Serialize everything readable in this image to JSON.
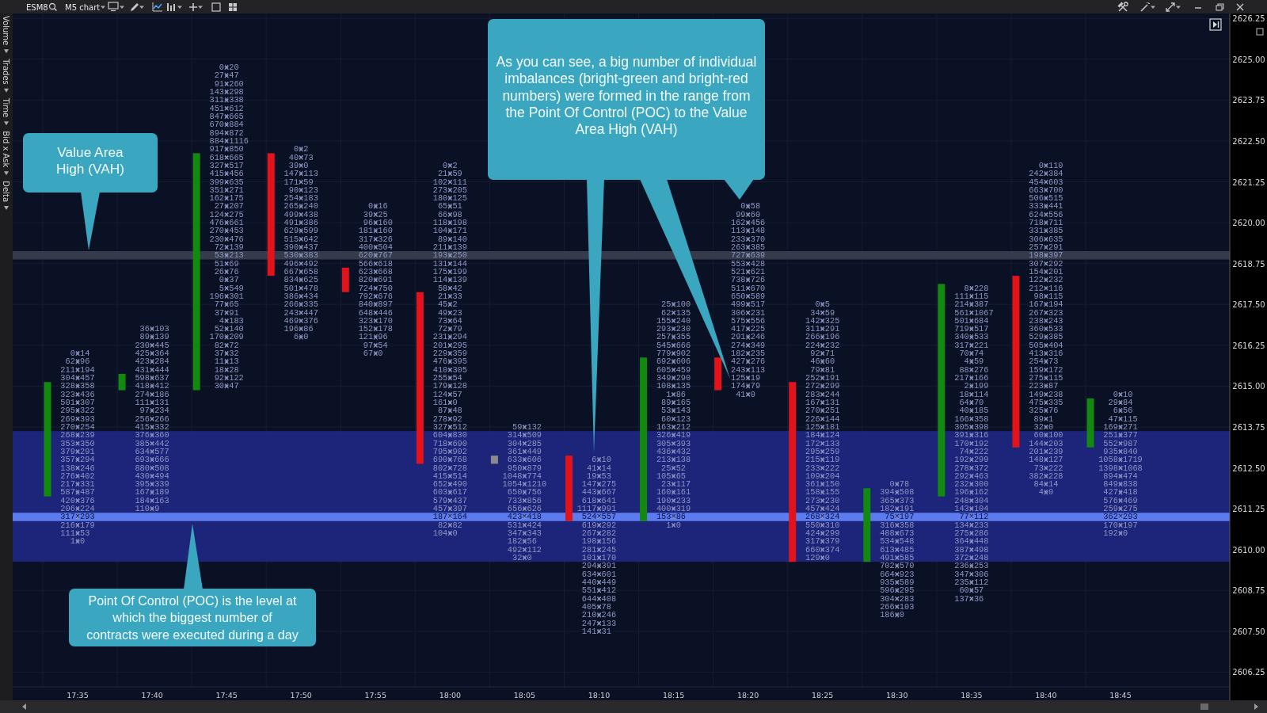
{
  "chart_data": {
    "type": "bar",
    "title": "ESM8",
    "subtitle": "M5 chart",
    "categories": [
      "17:35",
      "17:40",
      "17:45",
      "17:50",
      "17:55",
      "18:00",
      "18:05",
      "18:10",
      "18:15",
      "18:20",
      "18:25",
      "18:30",
      "18:35",
      "18:40",
      "18:45"
    ],
    "ylim": [
      2605.8,
      2626.4
    ],
    "yticks": [
      2606.25,
      {
        "value": 2607.5,
        "label": "2607.50"
      },
      2608.75,
      {
        "value": 2610,
        "label": "2610.00"
      },
      2611.25,
      {
        "value": 2612.5,
        "label": "2612.50"
      },
      2613.75,
      {
        "value": 2615,
        "label": "2615.00"
      },
      2616.25,
      {
        "value": 2617.5,
        "label": "2617.50"
      },
      2618.75,
      {
        "value": 2620,
        "label": "2620.00"
      },
      2621.25,
      {
        "value": 2622.5,
        "label": "2622.50"
      },
      2623.75,
      {
        "value": 2625,
        "label": "2625.00"
      },
      2626.25
    ],
    "grid": true,
    "bands": [
      {
        "axis": "y",
        "from": 2609.625,
        "to": 2613.625,
        "color": "#1c257a"
      }
    ],
    "ref_lines": [
      {
        "axis": "y",
        "value": 2619,
        "color": "#363b4b"
      },
      {
        "axis": "y",
        "value": 2611,
        "color": "#5b7bef"
      }
    ],
    "annotations": [
      "Volume",
      "Trades",
      "Time",
      "Bid x Ask",
      "Delta",
      "Value Area High (VAH)",
      "As you can see, a big number of individual imbalances (bright-green and bright-red numbers) were formed in the range from the Point Of Control (POC) to the Value Area High (VAH)",
      "Point Of Control (POC) is the level at which the biggest number of contracts were executed during a day"
    ],
    "series": [
      {
        "base": [
          2611.625,
          2614.875,
          2614.875,
          2622.125,
          2618.625,
          2617.875,
          2612.625,
          2612.875,
          2610.875,
          2615.875,
          2615.125,
          2609.625,
          2611.625,
          2618.375,
          2613.125
        ],
        "values": [
          3.5,
          0.5,
          7.25,
          -3.75,
          -0.75,
          -5.25,
          0.25,
          -2,
          5,
          -1,
          -5.5,
          2.25,
          6.5,
          -5.25,
          1.5
        ],
        "colors": [
          "#13890f",
          "#13890f",
          "#13890f",
          "#e3131b",
          "#e3131b",
          "#e3131b",
          "#8a8a8a",
          "#e3131b",
          "#13890f",
          "#e3131b",
          "#e3131b",
          "#13890f",
          "#13890f",
          "#e3131b",
          "#13890f"
        ]
      },
      {
        "type": "scatter",
        "marker": "cross",
        "color": "#8e95c2",
        "x": [
          "17:35",
          "17:35",
          "17:35",
          "17:35",
          "17:35",
          "17:35",
          "17:35",
          "17:35",
          "17:35",
          "17:35",
          "17:35",
          "17:35",
          "17:35",
          "17:35",
          "17:35",
          "17:35",
          "17:35",
          "17:35",
          "17:35",
          "17:35",
          "17:35",
          "17:35",
          "17:35",
          "17:35"
        ],
        "values": [
          2616,
          2615.75,
          2615.5,
          2615.25,
          2615,
          2614.75,
          2614.5,
          2614.25,
          2614,
          2613.75,
          2613.5,
          2613.25,
          2613,
          2612.75,
          2612.5,
          2612.25,
          2612,
          2611.75,
          2611.5,
          2611.25,
          2611,
          2610.75,
          2610.5,
          2610.25
        ],
        "value_labels": [
          "0×14",
          "62×96",
          "211×194",
          "304×457",
          "328×358",
          "323×436",
          "501×307",
          "295×322",
          "269×393",
          "270×254",
          "268×239",
          "353×350",
          "379×291",
          "357×294",
          "138×246",
          "276×402",
          "217×331",
          "587×487",
          "420×376",
          "206×224",
          "317×293",
          "216×179",
          "111×53",
          "1×0"
        ]
      },
      {
        "type": "scatter",
        "marker": "cross",
        "color": "#8e95c2",
        "x": [
          "17:40",
          "17:40",
          "17:40",
          "17:40",
          "17:40",
          "17:40",
          "17:40",
          "17:40",
          "17:40",
          "17:40",
          "17:40",
          "17:40",
          "17:40",
          "17:40",
          "17:40",
          "17:40",
          "17:40",
          "17:40",
          "17:40",
          "17:40",
          "17:40",
          "17:40",
          "17:40"
        ],
        "values": [
          2616.75,
          2616.5,
          2616.25,
          2616,
          2615.75,
          2615.5,
          2615.25,
          2615,
          2614.75,
          2614.5,
          2614.25,
          2614,
          2613.75,
          2613.5,
          2613.25,
          2613,
          2612.75,
          2612.5,
          2612.25,
          2612,
          2611.75,
          2611.5,
          2611.25
        ],
        "value_labels": [
          "36×103",
          "89×139",
          "230×445",
          "425×364",
          "423×284",
          "431×444",
          "598×637",
          "418×412",
          "274×186",
          "111×131",
          "97×234",
          "256×266",
          "415×332",
          "376×360",
          "385×442",
          "634×577",
          "693×666",
          "880×508",
          "430×494",
          "395×339",
          "167×189",
          "184×163",
          "110×9"
        ]
      },
      {
        "type": "scatter",
        "marker": "cross",
        "color": "#8e95c2",
        "x": [
          "17:45",
          "17:45",
          "17:45",
          "17:45",
          "17:45",
          "17:45",
          "17:45",
          "17:45",
          "17:45",
          "17:45",
          "17:45",
          "17:45",
          "17:45",
          "17:45",
          "17:45",
          "17:45",
          "17:45",
          "17:45",
          "17:45",
          "17:45",
          "17:45",
          "17:45",
          "17:45",
          "17:45",
          "17:45",
          "17:45",
          "17:45",
          "17:45",
          "17:45",
          "17:45",
          "17:45",
          "17:45",
          "17:45",
          "17:45",
          "17:45",
          "17:45",
          "17:45",
          "17:45",
          "17:45",
          "17:45"
        ],
        "values": [
          2624.75,
          2624.5,
          2624.25,
          2624,
          2623.75,
          2623.5,
          2623.25,
          2623,
          2622.75,
          2622.5,
          2622.25,
          2622,
          2621.75,
          2621.5,
          2621.25,
          2621,
          2620.75,
          2620.5,
          2620.25,
          2620,
          2619.75,
          2619.5,
          2619.25,
          2619,
          2618.75,
          2618.5,
          2618.25,
          2618,
          2617.75,
          2617.5,
          2617.25,
          2617,
          2616.75,
          2616.5,
          2616.25,
          2616,
          2615.75,
          2615.5,
          2615.25,
          2615
        ],
        "value_labels": [
          "0×20",
          "27×47",
          "91×260",
          "143×298",
          "311×338",
          "451×612",
          "847×665",
          "670×884",
          "894×872",
          "884×1116",
          "917×850",
          "618×665",
          "327×517",
          "415×456",
          "399×635",
          "351×271",
          "162×175",
          "27×207",
          "124×275",
          "476×661",
          "270×453",
          "230×476",
          "72×139",
          "53×213",
          "51×69",
          "26×76",
          "0×37",
          "5×549",
          "196×301",
          "77×65",
          "37×91",
          "4×183",
          "52×140",
          "170×209",
          "82×72",
          "37×32",
          "11×13",
          "18×28",
          "92×122",
          "30×47"
        ]
      },
      {
        "type": "scatter",
        "marker": "cross",
        "color": "#8e95c2",
        "x": [
          "17:50",
          "17:50",
          "17:50",
          "17:50",
          "17:50",
          "17:50",
          "17:50",
          "17:50",
          "17:50",
          "17:50",
          "17:50",
          "17:50",
          "17:50",
          "17:50",
          "17:50",
          "17:50",
          "17:50",
          "17:50",
          "17:50",
          "17:50",
          "17:50",
          "17:50",
          "17:50",
          "17:50"
        ],
        "values": [
          2622.25,
          2622,
          2621.75,
          2621.5,
          2621.25,
          2621,
          2620.75,
          2620.5,
          2620.25,
          2620,
          2619.75,
          2619.5,
          2619.25,
          2619,
          2618.75,
          2618.5,
          2618.25,
          2618,
          2617.75,
          2617.5,
          2617.25,
          2617,
          2616.75,
          2616.5
        ],
        "value_labels": [
          "0×2",
          "40×73",
          "39×0",
          "147×113",
          "171×59",
          "90×123",
          "254×183",
          "265×240",
          "499×438",
          "491×386",
          "629×599",
          "515×642",
          "390×437",
          "530×383",
          "496×492",
          "667×658",
          "834×625",
          "501×478",
          "386×434",
          "266×335",
          "243×447",
          "469×376",
          "196×86",
          "6×0"
        ]
      },
      {
        "type": "scatter",
        "marker": "cross",
        "color": "#8e95c2",
        "x": [
          "17:55",
          "17:55",
          "17:55",
          "17:55",
          "17:55",
          "17:55",
          "17:55",
          "17:55",
          "17:55",
          "17:55",
          "17:55",
          "17:55",
          "17:55",
          "17:55",
          "17:55",
          "17:55",
          "17:55",
          "17:55",
          "17:55"
        ],
        "values": [
          2620.5,
          2620.25,
          2620,
          2619.75,
          2619.5,
          2619.25,
          2619,
          2618.75,
          2618.5,
          2618.25,
          2618,
          2617.75,
          2617.5,
          2617.25,
          2617,
          2616.75,
          2616.5,
          2616.25,
          2616
        ],
        "value_labels": [
          "0×16",
          "39×25",
          "96×160",
          "181×160",
          "317×326",
          "400×504",
          "620×767",
          "566×618",
          "623×668",
          "820×691",
          "724×750",
          "792×676",
          "840×897",
          "648×446",
          "323×170",
          "152×178",
          "121×96",
          "97×54",
          "67×0"
        ]
      },
      {
        "type": "scatter",
        "marker": "cross",
        "color": "#8e95c2",
        "x": [
          "18:00",
          "18:00",
          "18:00",
          "18:00",
          "18:00",
          "18:00",
          "18:00",
          "18:00",
          "18:00",
          "18:00",
          "18:00",
          "18:00",
          "18:00",
          "18:00",
          "18:00",
          "18:00",
          "18:00",
          "18:00",
          "18:00",
          "18:00",
          "18:00",
          "18:00",
          "18:00",
          "18:00",
          "18:00",
          "18:00",
          "18:00",
          "18:00",
          "18:00",
          "18:00",
          "18:00",
          "18:00",
          "18:00",
          "18:00",
          "18:00",
          "18:00",
          "18:00",
          "18:00",
          "18:00",
          "18:00",
          "18:00",
          "18:00",
          "18:00",
          "18:00",
          "18:00",
          "18:00"
        ],
        "values": [
          2621.75,
          2621.5,
          2621.25,
          2621,
          2620.75,
          2620.5,
          2620.25,
          2620,
          2619.75,
          2619.5,
          2619.25,
          2619,
          2618.75,
          2618.5,
          2618.25,
          2618,
          2617.75,
          2617.5,
          2617.25,
          2617,
          2616.75,
          2616.5,
          2616.25,
          2616,
          2615.75,
          2615.5,
          2615.25,
          2615,
          2614.75,
          2614.5,
          2614.25,
          2614,
          2613.75,
          2613.5,
          2613.25,
          2613,
          2612.75,
          2612.5,
          2612.25,
          2612,
          2611.75,
          2611.5,
          2611.25,
          2611,
          2610.75,
          2610.5
        ],
        "value_labels": [
          "0×2",
          "21×59",
          "102×111",
          "273×205",
          "180×125",
          "65×51",
          "66×98",
          "118×198",
          "104×171",
          "89×140",
          "211×139",
          "193×250",
          "131×144",
          "175×199",
          "114×139",
          "58×42",
          "21×33",
          "45×2",
          "49×23",
          "73×64",
          "72×79",
          "231×294",
          "201×295",
          "229×359",
          "476×395",
          "410×305",
          "255×54",
          "179×128",
          "124×57",
          "161×0",
          "87×48",
          "278×92",
          "327×512",
          "604×830",
          "718×690",
          "795×902",
          "690×768",
          "802×728",
          "415×514",
          "652×490",
          "603×617",
          "579×437",
          "457×397",
          "187×164",
          "82×82",
          "104×0"
        ]
      },
      {
        "type": "scatter",
        "marker": "cross",
        "color": "#8e95c2",
        "x": [
          "18:05",
          "18:05",
          "18:05",
          "18:05",
          "18:05",
          "18:05",
          "18:05",
          "18:05",
          "18:05",
          "18:05",
          "18:05",
          "18:05",
          "18:05",
          "18:05",
          "18:05",
          "18:05",
          "18:05"
        ],
        "values": [
          2613.75,
          2613.5,
          2613.25,
          2613,
          2612.75,
          2612.5,
          2612.25,
          2612,
          2611.75,
          2611.5,
          2611.25,
          2611,
          2610.75,
          2610.5,
          2610.25,
          2610,
          2609.75
        ],
        "value_labels": [
          "59×132",
          "314×509",
          "304×285",
          "361×449",
          "633×606",
          "950×879",
          "1048×774",
          "1054×1210",
          "650×756",
          "733×856",
          "656×626",
          "423×418",
          "531×424",
          "347×343",
          "182×56",
          "492×112",
          "32×0"
        ]
      },
      {
        "type": "scatter",
        "marker": "cross",
        "color": "#8e95c2",
        "x": [
          "18:10",
          "18:10",
          "18:10",
          "18:10",
          "18:10",
          "18:10",
          "18:10",
          "18:10",
          "18:10",
          "18:10",
          "18:10",
          "18:10",
          "18:10",
          "18:10",
          "18:10",
          "18:10",
          "18:10",
          "18:10",
          "18:10",
          "18:10",
          "18:10",
          "18:10"
        ],
        "values": [
          2612.75,
          2612.5,
          2612.25,
          2612,
          2611.75,
          2611.5,
          2611.25,
          2611,
          2610.75,
          2610.5,
          2610.25,
          2610,
          2609.75,
          2609.5,
          2609.25,
          2609,
          2608.75,
          2608.5,
          2608.25,
          2608,
          2607.75,
          2607.5
        ],
        "value_labels": [
          "6×10",
          "41×14",
          "19×53",
          "147×275",
          "443×667",
          "618×641",
          "1117×991",
          "524×557",
          "619×292",
          "267×282",
          "198×156",
          "281×245",
          "101×170",
          "294×391",
          "634×601",
          "440×449",
          "551×412",
          "644×408",
          "405×78",
          "210×246",
          "247×133",
          "141×31"
        ]
      },
      {
        "type": "scatter",
        "marker": "cross",
        "color": "#8e95c2",
        "x": [
          "18:15",
          "18:15",
          "18:15",
          "18:15",
          "18:15",
          "18:15",
          "18:15",
          "18:15",
          "18:15",
          "18:15",
          "18:15",
          "18:15",
          "18:15",
          "18:15",
          "18:15",
          "18:15",
          "18:15",
          "18:15",
          "18:15",
          "18:15",
          "18:15",
          "18:15",
          "18:15",
          "18:15",
          "18:15",
          "18:15",
          "18:15",
          "18:15"
        ],
        "values": [
          2617.5,
          2617.25,
          2617,
          2616.75,
          2616.5,
          2616.25,
          2616,
          2615.75,
          2615.5,
          2615.25,
          2615,
          2614.75,
          2614.5,
          2614.25,
          2614,
          2613.75,
          2613.5,
          2613.25,
          2613,
          2612.75,
          2612.5,
          2612.25,
          2612,
          2611.75,
          2611.5,
          2611.25,
          2611,
          2610.75
        ],
        "value_labels": [
          "25×100",
          "62×135",
          "155×240",
          "293×230",
          "257×355",
          "545×666",
          "779×902",
          "692×606",
          "605×459",
          "349×290",
          "108×135",
          "1×86",
          "89×165",
          "53×143",
          "60×123",
          "163×212",
          "326×419",
          "305×393",
          "436×432",
          "213×138",
          "25×52",
          "105×65",
          "23×117",
          "160×161",
          "190×233",
          "400×319",
          "153×86",
          "1×0"
        ]
      },
      {
        "type": "scatter",
        "marker": "cross",
        "color": "#8e95c2",
        "x": [
          "18:20",
          "18:20",
          "18:20",
          "18:20",
          "18:20",
          "18:20",
          "18:20",
          "18:20",
          "18:20",
          "18:20",
          "18:20",
          "18:20",
          "18:20",
          "18:20",
          "18:20",
          "18:20",
          "18:20",
          "18:20",
          "18:20",
          "18:20",
          "18:20",
          "18:20",
          "18:20",
          "18:20"
        ],
        "values": [
          2620.5,
          2620.25,
          2620,
          2619.75,
          2619.5,
          2619.25,
          2619,
          2618.75,
          2618.5,
          2618.25,
          2618,
          2617.75,
          2617.5,
          2617.25,
          2617,
          2616.75,
          2616.5,
          2616.25,
          2616,
          2615.75,
          2615.5,
          2615.25,
          2615,
          2614.75
        ],
        "value_labels": [
          "0×58",
          "99×60",
          "162×456",
          "113×148",
          "233×370",
          "263×385",
          "727×639",
          "553×428",
          "521×621",
          "738×726",
          "511×670",
          "650×589",
          "499×517",
          "306×231",
          "575×556",
          "417×225",
          "291×246",
          "274×349",
          "182×235",
          "427×276",
          "243×113",
          "125×19",
          "174×79",
          "41×0"
        ]
      },
      {
        "type": "scatter",
        "marker": "cross",
        "color": "#8e95c2",
        "x": [
          "18:25",
          "18:25",
          "18:25",
          "18:25",
          "18:25",
          "18:25",
          "18:25",
          "18:25",
          "18:25",
          "18:25",
          "18:25",
          "18:25",
          "18:25",
          "18:25",
          "18:25",
          "18:25",
          "18:25",
          "18:25",
          "18:25",
          "18:25",
          "18:25",
          "18:25",
          "18:25",
          "18:25",
          "18:25",
          "18:25",
          "18:25",
          "18:25",
          "18:25",
          "18:25",
          "18:25",
          "18:25"
        ],
        "values": [
          2617.5,
          2617.25,
          2617,
          2616.75,
          2616.5,
          2616.25,
          2616,
          2615.75,
          2615.5,
          2615.25,
          2615,
          2614.75,
          2614.5,
          2614.25,
          2614,
          2613.75,
          2613.5,
          2613.25,
          2613,
          2612.75,
          2612.5,
          2612.25,
          2612,
          2611.75,
          2611.5,
          2611.25,
          2611,
          2610.75,
          2610.5,
          2610.25,
          2610,
          2609.75
        ],
        "value_labels": [
          "0×5",
          "34×59",
          "142×325",
          "311×291",
          "266×196",
          "224×232",
          "92×71",
          "46×60",
          "79×81",
          "252×191",
          "272×299",
          "283×244",
          "167×131",
          "270×251",
          "226×144",
          "125×181",
          "184×124",
          "172×133",
          "295×259",
          "215×119",
          "233×222",
          "109×204",
          "361×150",
          "158×155",
          "273×230",
          "457×424",
          "268×324",
          "550×310",
          "424×299",
          "317×379",
          "660×374",
          "129×0"
        ]
      },
      {
        "type": "scatter",
        "marker": "cross",
        "color": "#8e95c2",
        "x": [
          "18:30",
          "18:30",
          "18:30",
          "18:30",
          "18:30",
          "18:30",
          "18:30",
          "18:30",
          "18:30",
          "18:30",
          "18:30",
          "18:30",
          "18:30",
          "18:30",
          "18:30",
          "18:30",
          "18:30"
        ],
        "values": [
          2612,
          2611.75,
          2611.5,
          2611.25,
          2611,
          2610.75,
          2610.5,
          2610.25,
          2610,
          2609.75,
          2609.5,
          2609.25,
          2609,
          2608.75,
          2608.5,
          2608.25,
          2608
        ],
        "value_labels": [
          "0×78",
          "394×508",
          "365×373",
          "182×191",
          "75×197",
          "316×358",
          "488×673",
          "534×548",
          "613×485",
          "491×585",
          "702×570",
          "664×923",
          "935×589",
          "596×295",
          "304×283",
          "266×103",
          "186×0"
        ]
      },
      {
        "type": "scatter",
        "marker": "cross",
        "color": "#8e95c2",
        "x": [
          "18:35",
          "18:35",
          "18:35",
          "18:35",
          "18:35",
          "18:35",
          "18:35",
          "18:35",
          "18:35",
          "18:35",
          "18:35",
          "18:35",
          "18:35",
          "18:35",
          "18:35",
          "18:35",
          "18:35",
          "18:35",
          "18:35",
          "18:35",
          "18:35",
          "18:35",
          "18:35",
          "18:35",
          "18:35",
          "18:35",
          "18:35",
          "18:35",
          "18:35",
          "18:35",
          "18:35",
          "18:35",
          "18:35",
          "18:35",
          "18:35",
          "18:35",
          "18:35",
          "18:35",
          "18:35"
        ],
        "values": [
          2618,
          2617.75,
          2617.5,
          2617.25,
          2617,
          2616.75,
          2616.5,
          2616.25,
          2616,
          2615.75,
          2615.5,
          2615.25,
          2615,
          2614.75,
          2614.5,
          2614.25,
          2614,
          2613.75,
          2613.5,
          2613.25,
          2613,
          2612.75,
          2612.5,
          2612.25,
          2612,
          2611.75,
          2611.5,
          2611.25,
          2611,
          2610.75,
          2610.5,
          2610.25,
          2610,
          2609.75,
          2609.5,
          2609.25,
          2609,
          2608.75,
          2608.5
        ],
        "value_labels": [
          "8×228",
          "111×115",
          "214×387",
          "561×1067",
          "501×684",
          "719×517",
          "340×533",
          "317×221",
          "70×74",
          "4×59",
          "88×276",
          "217×166",
          "2×199",
          "18×114",
          "64×70",
          "40×185",
          "166×358",
          "305×398",
          "391×316",
          "170×192",
          "74×222",
          "192×299",
          "278×372",
          "292×463",
          "232×300",
          "196×162",
          "248×304",
          "143×104",
          "77×112",
          "134×233",
          "275×286",
          "364×448",
          "387×498",
          "372×248",
          "236×253",
          "347×306",
          "235×112",
          "60×57",
          "137×36"
        ]
      },
      {
        "type": "scatter",
        "marker": "cross",
        "color": "#8e95c2",
        "x": [
          "18:40",
          "18:40",
          "18:40",
          "18:40",
          "18:40",
          "18:40",
          "18:40",
          "18:40",
          "18:40",
          "18:40",
          "18:40",
          "18:40",
          "18:40",
          "18:40",
          "18:40",
          "18:40",
          "18:40",
          "18:40",
          "18:40",
          "18:40",
          "18:40",
          "18:40",
          "18:40",
          "18:40",
          "18:40",
          "18:40",
          "18:40",
          "18:40",
          "18:40",
          "18:40",
          "18:40",
          "18:40",
          "18:40",
          "18:40",
          "18:40",
          "18:40",
          "18:40",
          "18:40",
          "18:40",
          "18:40",
          "18:40"
        ],
        "values": [
          2621.75,
          2621.5,
          2621.25,
          2621,
          2620.75,
          2620.5,
          2620.25,
          2620,
          2619.75,
          2619.5,
          2619.25,
          2619,
          2618.75,
          2618.5,
          2618.25,
          2618,
          2617.75,
          2617.5,
          2617.25,
          2617,
          2616.75,
          2616.5,
          2616.25,
          2616,
          2615.75,
          2615.5,
          2615.25,
          2615,
          2614.75,
          2614.5,
          2614.25,
          2614,
          2613.75,
          2613.5,
          2613.25,
          2613,
          2612.75,
          2612.5,
          2612.25,
          2612,
          2611.75
        ],
        "value_labels": [
          "0×110",
          "242×384",
          "454×603",
          "663×700",
          "506×515",
          "333×441",
          "624×556",
          "718×711",
          "331×385",
          "306×635",
          "257×291",
          "198×397",
          "307×292",
          "154×201",
          "122×232",
          "212×116",
          "98×115",
          "167×194",
          "267×323",
          "238×243",
          "360×533",
          "529×385",
          "505×404",
          "413×316",
          "254×73",
          "159×172",
          "275×115",
          "223×87",
          "149×238",
          "475×335",
          "325×76",
          "89×1",
          "32×0",
          "60×100",
          "144×203",
          "201×239",
          "148×127",
          "73×222",
          "382×228",
          "84×14",
          "4×0"
        ]
      },
      {
        "type": "scatter",
        "marker": "cross",
        "color": "#8e95c2",
        "x": [
          "18:45",
          "18:45",
          "18:45",
          "18:45",
          "18:45",
          "18:45",
          "18:45",
          "18:45",
          "18:45",
          "18:45",
          "18:45",
          "18:45",
          "18:45",
          "18:45",
          "18:45",
          "18:45",
          "18:45",
          "18:45"
        ],
        "values": [
          2614.75,
          2614.5,
          2614.25,
          2614,
          2613.75,
          2613.5,
          2613.25,
          2613,
          2612.75,
          2612.5,
          2612.25,
          2612,
          2611.75,
          2611.5,
          2611.25,
          2611,
          2610.75,
          2610.5
        ],
        "value_labels": [
          "0×10",
          "29×84",
          "6×56",
          "47×115",
          "169×271",
          "251×377",
          "552×987",
          "935×840",
          "1058×1719",
          "1398×1068",
          "894×474",
          "849×838",
          "427×418",
          "576×469",
          "259×275",
          "362×293",
          "170×197",
          "192×0"
        ]
      }
    ]
  }
}
